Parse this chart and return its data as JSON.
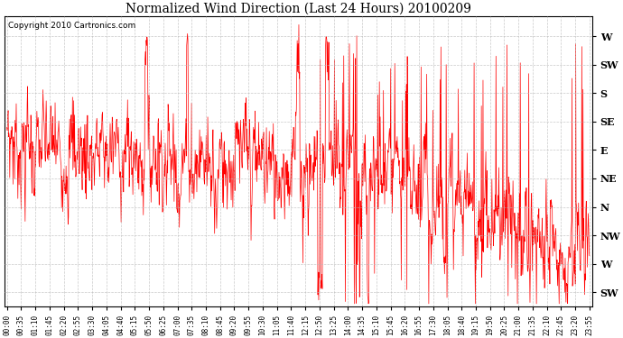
{
  "title": "Normalized Wind Direction (Last 24 Hours) 20100209",
  "copyright_text": "Copyright 2010 Cartronics.com",
  "line_color": "#ff0000",
  "background_color": "#ffffff",
  "grid_color": "#bbbbbb",
  "y_tick_labels": [
    "W",
    "SW",
    "S",
    "SE",
    "E",
    "NE",
    "N",
    "NW",
    "W",
    "SW"
  ],
  "y_tick_values": [
    9.0,
    8.0,
    7.0,
    6.0,
    5.0,
    4.0,
    3.0,
    2.0,
    1.0,
    0.0
  ],
  "ylim": [
    -0.5,
    9.7
  ],
  "x_tick_labels": [
    "00:00",
    "00:35",
    "01:10",
    "01:45",
    "02:20",
    "02:55",
    "03:30",
    "04:05",
    "04:40",
    "05:15",
    "05:50",
    "06:25",
    "07:00",
    "07:35",
    "08:10",
    "08:45",
    "09:20",
    "09:55",
    "10:30",
    "11:05",
    "11:40",
    "12:15",
    "12:50",
    "13:25",
    "14:00",
    "14:35",
    "15:10",
    "15:45",
    "16:20",
    "16:55",
    "17:30",
    "18:05",
    "18:40",
    "19:15",
    "19:50",
    "20:25",
    "21:00",
    "21:35",
    "22:10",
    "22:45",
    "23:20",
    "23:55"
  ],
  "seed": 7,
  "figsize": [
    6.9,
    3.75
  ],
  "dpi": 100
}
